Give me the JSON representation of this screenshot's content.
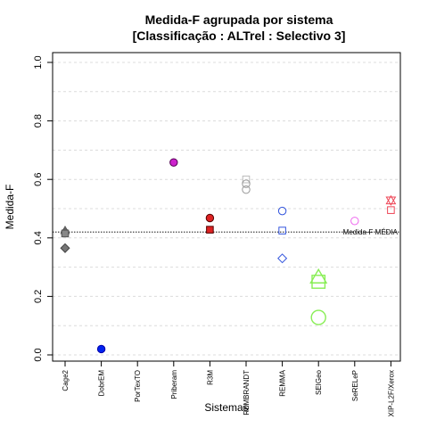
{
  "chart_data": {
    "type": "scatter",
    "title": "Medida-F agrupada por sistema",
    "subtitle": "[Classificação : ALTrel : Selectivo 3]",
    "xlabel": "Sistemas",
    "ylabel": "Medida-F",
    "ylim": [
      0,
      1
    ],
    "yticks": [
      "0.0",
      "0.2",
      "0.4",
      "0.6",
      "0.8",
      "1.0"
    ],
    "grid": true,
    "categories": [
      "Cage2",
      "DobrEM",
      "PorTexTO",
      "Priberam",
      "R3M",
      "REMBRANDT",
      "REMMA",
      "SEIGeo",
      "SeRELeP",
      "XIP-L2F/Xerox"
    ],
    "reference_line": {
      "label": "Medida-F MÉDIA",
      "value": 0.42
    },
    "points": [
      {
        "category": "Cage2",
        "value": 0.425,
        "shape": "triangle",
        "color": "#555555",
        "fill": "#888888"
      },
      {
        "category": "Cage2",
        "value": 0.418,
        "shape": "circle",
        "color": "#555555",
        "fill": "#888888"
      },
      {
        "category": "Cage2",
        "value": 0.415,
        "shape": "square",
        "color": "#555555",
        "fill": "#888888"
      },
      {
        "category": "Cage2",
        "value": 0.365,
        "shape": "diamond",
        "color": "#444444",
        "fill": "#777777"
      },
      {
        "category": "DobrEM",
        "value": 0.02,
        "shape": "circle",
        "color": "#0000aa",
        "fill": "#0022ee"
      },
      {
        "category": "Priberam",
        "value": 0.658,
        "shape": "circle",
        "color": "#550055",
        "fill": "#cc22cc"
      },
      {
        "category": "R3M",
        "value": 0.468,
        "shape": "circle",
        "color": "#550000",
        "fill": "#dd2222"
      },
      {
        "category": "R3M",
        "value": 0.428,
        "shape": "square",
        "color": "#550000",
        "fill": "#dd2222"
      },
      {
        "category": "REMBRANDT",
        "value": 0.6,
        "shape": "square",
        "color": "#bbbbbb",
        "fill": "none"
      },
      {
        "category": "REMBRANDT",
        "value": 0.585,
        "shape": "circle",
        "color": "#999999",
        "fill": "none"
      },
      {
        "category": "REMBRANDT",
        "value": 0.565,
        "shape": "circle",
        "color": "#999999",
        "fill": "none"
      },
      {
        "category": "REMMA",
        "value": 0.492,
        "shape": "circle",
        "color": "#3355dd",
        "fill": "none"
      },
      {
        "category": "REMMA",
        "value": 0.425,
        "shape": "square",
        "color": "#3355dd",
        "fill": "none"
      },
      {
        "category": "REMMA",
        "value": 0.33,
        "shape": "diamond",
        "color": "#3355dd",
        "fill": "none"
      },
      {
        "category": "SEIGeo",
        "value": 0.265,
        "shape": "triangle",
        "color": "#88ee55",
        "fill": "none",
        "big": true
      },
      {
        "category": "SEIGeo",
        "value": 0.25,
        "shape": "square",
        "color": "#88ee55",
        "fill": "none",
        "big": true
      },
      {
        "category": "SEIGeo",
        "value": 0.128,
        "shape": "circle",
        "color": "#88ee55",
        "fill": "none",
        "big": true
      },
      {
        "category": "SeRELeP",
        "value": 0.458,
        "shape": "circle",
        "color": "#ee66ee",
        "fill": "none"
      },
      {
        "category": "XIP-L2F/Xerox",
        "value": 0.528,
        "shape": "star",
        "color": "#ee4455",
        "fill": "none"
      },
      {
        "category": "XIP-L2F/Xerox",
        "value": 0.495,
        "shape": "square",
        "color": "#ee4455",
        "fill": "none"
      }
    ]
  }
}
